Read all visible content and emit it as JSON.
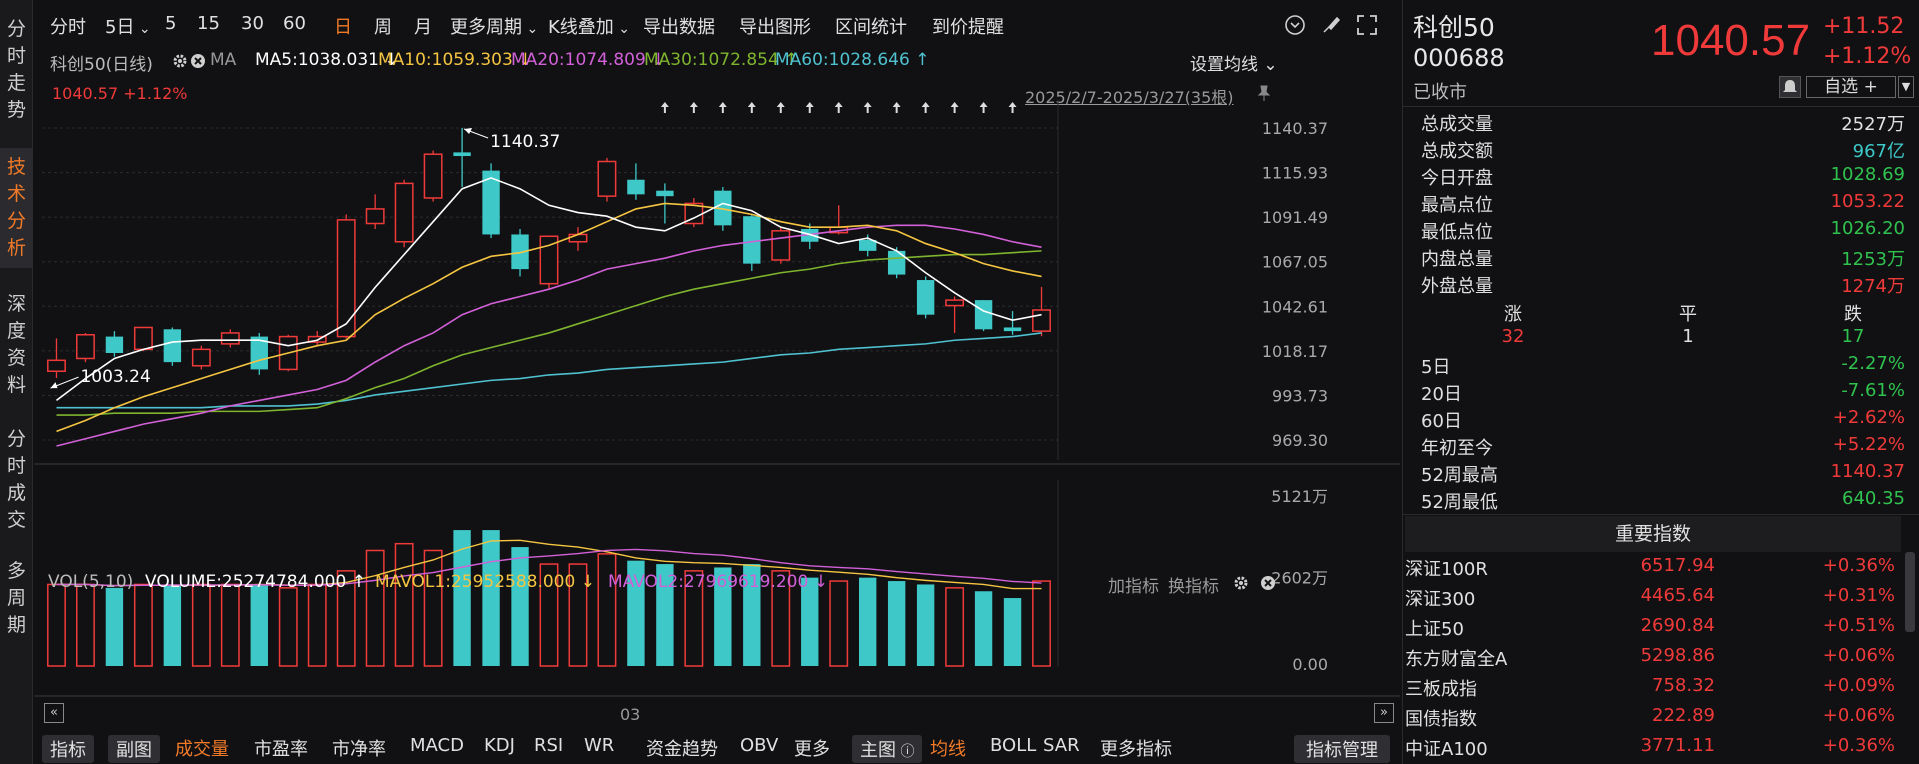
{
  "leftnav": [
    {
      "label": [
        "分",
        "时",
        "走",
        "势"
      ],
      "active": false
    },
    {
      "label": [
        "技",
        "术",
        "分",
        "析"
      ],
      "active": true
    },
    {
      "label": [
        "深",
        "度",
        "资",
        "料"
      ],
      "active": false
    },
    {
      "label": [
        "分",
        "时",
        "成",
        "交"
      ],
      "active": false
    },
    {
      "label": [
        "多",
        "周",
        "期"
      ],
      "active": false
    }
  ],
  "toolbar": {
    "items": [
      "分时",
      "5日",
      "5",
      "15",
      "30",
      "60",
      "日",
      "周",
      "月",
      "更多周期",
      "K线叠加",
      "导出数据",
      "导出图形",
      "区间统计",
      "到价提醒"
    ],
    "active": "日"
  },
  "ma_row": {
    "name": "科创50(日线)",
    "ma_label": "MA",
    "ma5": "MA5:1038.031",
    "ma10": "MA10:1059.303",
    "ma20": "MA20:1074.809",
    "ma30": "MA30:1072.854",
    "ma60": "MA60:1028.646",
    "ma5_arrow": "↓",
    "ma10_arrow": "↓",
    "ma20_arrow": "↓",
    "ma30_arrow": "↑",
    "ma60_arrow": "↑",
    "settings": "设置均线"
  },
  "price_label": "1040.57",
  "change_label": "+1.12%",
  "range_label": "2025/2/7-2025/3/27(35根)",
  "max_label": "1140.37",
  "min_label": "1003.24",
  "xaxis_label": "03",
  "colors": {
    "up": "#f03a3a",
    "down": "#3ec8c8",
    "ma5": "#ffffff",
    "ma10": "#f5c542",
    "ma20": "#d260d8",
    "ma30": "#7fb52e",
    "ma60": "#4fc1d0",
    "accent": "#f07a28"
  },
  "chart_data": {
    "type": "candlestick",
    "y_ticks": [
      "1140.37",
      "1115.93",
      "1091.49",
      "1067.05",
      "1042.61",
      "1018.17",
      "993.73",
      "969.30"
    ],
    "ylim": [
      969.3,
      1140.37
    ],
    "candles": [
      {
        "o": 1007,
        "c": 1013,
        "h": 1025,
        "l": 1003.24
      },
      {
        "o": 1014,
        "c": 1027,
        "h": 1028,
        "l": 1012
      },
      {
        "o": 1026,
        "c": 1017,
        "h": 1029,
        "l": 1015
      },
      {
        "o": 1019,
        "c": 1031,
        "h": 1031,
        "l": 1018
      },
      {
        "o": 1030,
        "c": 1012,
        "h": 1031,
        "l": 1010
      },
      {
        "o": 1010,
        "c": 1019,
        "h": 1021,
        "l": 1008
      },
      {
        "o": 1022,
        "c": 1028,
        "h": 1030,
        "l": 1020
      },
      {
        "o": 1026,
        "c": 1008,
        "h": 1028,
        "l": 1005
      },
      {
        "o": 1008,
        "c": 1026,
        "h": 1027,
        "l": 1007
      },
      {
        "o": 1023,
        "c": 1026,
        "h": 1029,
        "l": 1021
      },
      {
        "o": 1026,
        "c": 1090,
        "h": 1093,
        "l": 1025
      },
      {
        "o": 1088,
        "c": 1096,
        "h": 1104,
        "l": 1085
      },
      {
        "o": 1078,
        "c": 1110,
        "h": 1112,
        "l": 1075
      },
      {
        "o": 1102,
        "c": 1126,
        "h": 1128,
        "l": 1100
      },
      {
        "o": 1127,
        "c": 1125,
        "h": 1140.37,
        "l": 1108
      },
      {
        "o": 1117,
        "c": 1082,
        "h": 1121,
        "l": 1080
      },
      {
        "o": 1082,
        "c": 1063,
        "h": 1085,
        "l": 1059
      },
      {
        "o": 1055,
        "c": 1081,
        "h": 1081,
        "l": 1052
      },
      {
        "o": 1078,
        "c": 1082,
        "h": 1086,
        "l": 1073
      },
      {
        "o": 1103,
        "c": 1122,
        "h": 1124,
        "l": 1100
      },
      {
        "o": 1112,
        "c": 1104,
        "h": 1121,
        "l": 1101
      },
      {
        "o": 1106,
        "c": 1103,
        "h": 1110,
        "l": 1088
      },
      {
        "o": 1088,
        "c": 1099,
        "h": 1102,
        "l": 1086
      },
      {
        "o": 1106,
        "c": 1087,
        "h": 1108,
        "l": 1084
      },
      {
        "o": 1092,
        "c": 1066,
        "h": 1093,
        "l": 1062
      },
      {
        "o": 1068,
        "c": 1084,
        "h": 1086,
        "l": 1066
      },
      {
        "o": 1085,
        "c": 1078,
        "h": 1088,
        "l": 1074
      },
      {
        "o": 1083,
        "c": 1086,
        "h": 1098,
        "l": 1082
      },
      {
        "o": 1079,
        "c": 1073,
        "h": 1082,
        "l": 1070
      },
      {
        "o": 1073,
        "c": 1060,
        "h": 1075,
        "l": 1058
      },
      {
        "o": 1057,
        "c": 1038,
        "h": 1059,
        "l": 1036
      },
      {
        "o": 1043,
        "c": 1046,
        "h": 1048,
        "l": 1028
      },
      {
        "o": 1046,
        "c": 1030,
        "h": 1046,
        "l": 1029
      },
      {
        "o": 1031,
        "c": 1029,
        "h": 1040,
        "l": 1027
      },
      {
        "o": 1029,
        "c": 1040.57,
        "h": 1053.22,
        "l": 1026.2
      }
    ],
    "ma5": [
      991,
      1003,
      1014,
      1019,
      1023,
      1024,
      1024,
      1024,
      1021,
      1024,
      1033,
      1053,
      1071,
      1089,
      1107,
      1113,
      1107,
      1098,
      1094,
      1092,
      1086,
      1084,
      1091,
      1099,
      1095,
      1086,
      1082,
      1077,
      1080,
      1073,
      1061,
      1050,
      1040,
      1035,
      1038
    ],
    "ma10": [
      974,
      980,
      987,
      993,
      998,
      1003,
      1008,
      1013,
      1017,
      1021,
      1024,
      1038,
      1047,
      1055,
      1064,
      1070,
      1072,
      1076,
      1082,
      1089,
      1096,
      1099,
      1098,
      1096,
      1093,
      1089,
      1086,
      1086,
      1087,
      1084,
      1077,
      1072,
      1066,
      1062,
      1059
    ],
    "ma20": [
      966,
      970,
      974,
      978,
      981,
      984,
      988,
      991,
      994,
      997,
      1002,
      1012,
      1021,
      1028,
      1038,
      1044,
      1048,
      1052,
      1057,
      1063,
      1066,
      1069,
      1073,
      1076,
      1078,
      1080,
      1082,
      1084,
      1086,
      1087,
      1087,
      1085,
      1082,
      1078,
      1075
    ],
    "ma30": [
      983,
      983,
      984,
      984,
      984,
      985,
      985,
      985,
      986,
      987,
      992,
      998,
      1003,
      1010,
      1016,
      1020,
      1024,
      1028,
      1033,
      1038,
      1043,
      1048,
      1052,
      1055,
      1058,
      1061,
      1063,
      1066,
      1068,
      1069,
      1070,
      1071,
      1071,
      1072,
      1073
    ],
    "ma60": [
      987,
      987,
      987,
      987,
      987,
      987,
      988,
      988,
      988,
      989,
      991,
      994,
      996,
      998,
      1000,
      1002,
      1003,
      1005,
      1006,
      1008,
      1009,
      1010,
      1011,
      1012,
      1014,
      1016,
      1017,
      1019,
      1020,
      1021,
      1022,
      1024,
      1025,
      1026,
      1028
    ],
    "volume": [
      24,
      24,
      23,
      24,
      24,
      24,
      24,
      24,
      23,
      24,
      28,
      34,
      36,
      34,
      40,
      40,
      35,
      30,
      30,
      33,
      31,
      30,
      28,
      29,
      30,
      28,
      26,
      25,
      26,
      25,
      24,
      23,
      22,
      20,
      25
    ],
    "vol_ticks": [
      "5121万",
      "2602万",
      "0.00"
    ],
    "vol_max": 51.21
  },
  "vol_header": {
    "name": "VOL(5,10)",
    "volume": "VOLUME:25274784.000",
    "volume_arrow": "↑",
    "mavol1": "MAVOL1:25952588.000",
    "mavol1_arrow": "↓",
    "mavol2": "MAVOL2:27969619.200",
    "mavol2_arrow": "↓",
    "add": "加指标",
    "swap": "换指标"
  },
  "bottom_tabs": {
    "left": [
      "指标",
      "副图",
      "成交量",
      "市盈率",
      "市净率",
      "MACD",
      "KDJ",
      "RSI",
      "WR",
      "资金趋势",
      "OBV",
      "更多"
    ],
    "main": "主图",
    "right": [
      "均线",
      "BOLL",
      "SAR",
      "更多指标"
    ],
    "manage": "指标管理"
  },
  "quote": {
    "name": "科创50",
    "code": "000688",
    "status": "已收市",
    "price": "1040.57",
    "change": "+11.52",
    "pct": "+1.12%",
    "watch": "自选 +"
  },
  "stats": [
    {
      "label": "总成交量",
      "value": "2527万",
      "cls": "flat"
    },
    {
      "label": "总成交额",
      "value": "967亿",
      "cls": "cyan"
    },
    {
      "label": "今日开盘",
      "value": "1028.69",
      "cls": "down"
    },
    {
      "label": "最高点位",
      "value": "1053.22",
      "cls": "up"
    },
    {
      "label": "最低点位",
      "value": "1026.20",
      "cls": "down"
    },
    {
      "label": "内盘总量",
      "value": "1253万",
      "cls": "down"
    },
    {
      "label": "外盘总量",
      "value": "1274万",
      "cls": "up"
    }
  ],
  "breadth": {
    "up_label": "涨",
    "flat_label": "平",
    "down_label": "跌",
    "up": "32",
    "flat": "1",
    "down": "17"
  },
  "periods": [
    {
      "label": "5日",
      "value": "-2.27%",
      "cls": "down"
    },
    {
      "label": "20日",
      "value": "-7.61%",
      "cls": "down"
    },
    {
      "label": "60日",
      "value": "+2.62%",
      "cls": "up"
    },
    {
      "label": "年初至今",
      "value": "+5.22%",
      "cls": "up"
    },
    {
      "label": "52周最高",
      "value": "1140.37",
      "cls": "up"
    },
    {
      "label": "52周最低",
      "value": "640.35",
      "cls": "down"
    }
  ],
  "index_title": "重要指数",
  "indices": [
    {
      "name": "深证100R",
      "price": "6517.94",
      "pct": "+0.36%"
    },
    {
      "name": "深证300",
      "price": "4465.64",
      "pct": "+0.31%"
    },
    {
      "name": "上证50",
      "price": "2690.84",
      "pct": "+0.51%"
    },
    {
      "name": "东方财富全A",
      "price": "5298.86",
      "pct": "+0.06%"
    },
    {
      "name": "三板成指",
      "price": "758.32",
      "pct": "+0.09%"
    },
    {
      "name": "国债指数",
      "price": "222.89",
      "pct": "+0.06%"
    },
    {
      "name": "中证A100",
      "price": "3771.11",
      "pct": "+0.36%"
    }
  ]
}
